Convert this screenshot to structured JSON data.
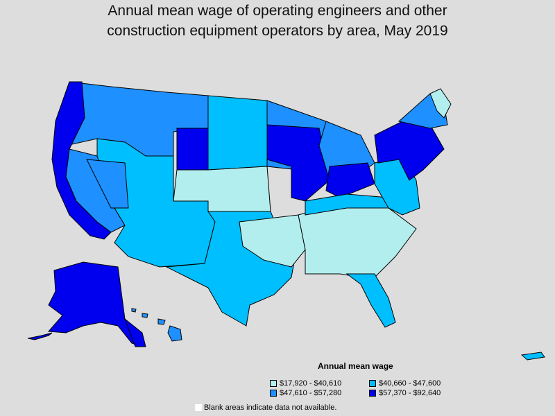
{
  "title": {
    "line1": "Annual mean wage of operating engineers and other",
    "line2": "construction equipment operators by area, May 2019"
  },
  "legend": {
    "title": "Annual mean wage",
    "items": [
      {
        "label": "$17,920 - $40,610",
        "color": "#b2eeee"
      },
      {
        "label": "$40,660 - $47,600",
        "color": "#00bfff"
      },
      {
        "label": "$47,610 - $57,280",
        "color": "#1e90ff"
      },
      {
        "label": "$57,370 - $92,640",
        "color": "#0000ee"
      }
    ]
  },
  "note": "Blank areas indicate data not available.",
  "colors": {
    "background": "#dddddd",
    "border": "#000000",
    "tier1": "#b2eeee",
    "tier2": "#00bfff",
    "tier3": "#1e90ff",
    "tier4": "#0000ee"
  }
}
